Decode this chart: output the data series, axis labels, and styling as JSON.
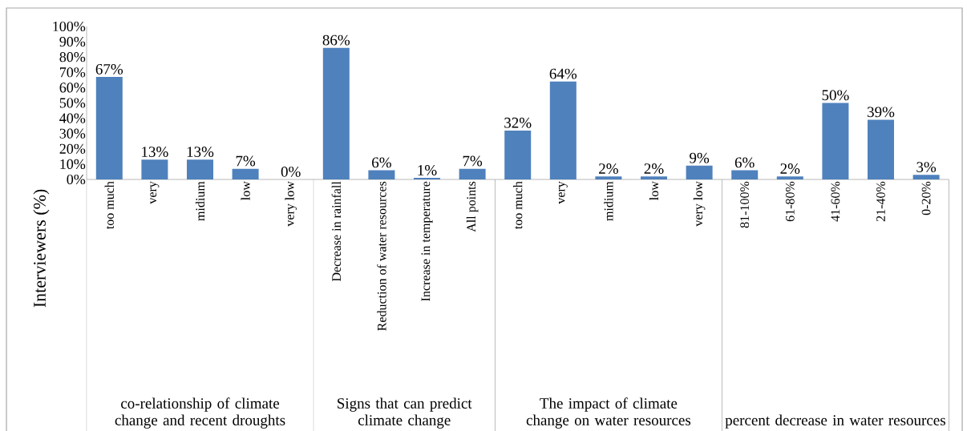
{
  "chart_data": [
    {
      "type": "bar",
      "xlabel": "co-relationship of climate change and recent droughts",
      "ylabel": "Interviewers (%)",
      "categories": [
        "too much",
        "very",
        "midium",
        "low",
        "very low"
      ],
      "values": [
        67,
        13,
        13,
        7,
        0
      ],
      "value_labels": [
        "67%",
        "13%",
        "13%",
        "7%",
        "0%"
      ],
      "color": "#4f81bd",
      "ylim": [
        0,
        100
      ],
      "yticks": [
        {
          "value": 0,
          "label": "0%"
        },
        {
          "value": 10,
          "label": "10%"
        },
        {
          "value": 20,
          "label": "20%"
        },
        {
          "value": 30,
          "label": "30%"
        },
        {
          "value": 40,
          "label": "40%"
        },
        {
          "value": 50,
          "label": "50%"
        },
        {
          "value": 60,
          "label": "60%"
        },
        {
          "value": 70,
          "label": "70%"
        },
        {
          "value": 80,
          "label": "80%"
        },
        {
          "value": 90,
          "label": "90%"
        },
        {
          "value": 100,
          "label": "100%"
        }
      ]
    },
    {
      "type": "bar",
      "xlabel": "Signs that can predict climate change",
      "categories": [
        "Decrease in rainfall",
        "Reduction of water resources",
        "Increase in temperature",
        "All points"
      ],
      "values": [
        86,
        6,
        1,
        7
      ],
      "value_labels": [
        "86%",
        "6%",
        "1%",
        "7%"
      ],
      "color": "#4f81bd",
      "ylim": [
        0,
        100
      ],
      "tick_labels": "x"
    },
    {
      "type": "bar",
      "xlabel": "The impact of climate change on water resources",
      "categories": [
        "too much",
        "very",
        "midium",
        "low",
        "very low"
      ],
      "values": [
        32,
        64,
        2,
        2,
        9
      ],
      "value_labels": [
        "32%",
        "64%",
        "2%",
        "2%",
        "9%"
      ],
      "color": "#4f81bd",
      "ylim": [
        0,
        100
      ],
      "tick_labels": "x"
    },
    {
      "type": "bar",
      "xlabel": "percent decrease in water resources",
      "categories": [
        "81-100%",
        "61-80%",
        "41-60%",
        "21-40%",
        "0-20%"
      ],
      "values": [
        6,
        2,
        50,
        39,
        3
      ],
      "value_labels": [
        "6%",
        "2%",
        "50%",
        "39%",
        "3%"
      ],
      "color": "#4f81bd",
      "ylim": [
        0,
        100
      ],
      "tick_labels": "x"
    }
  ]
}
